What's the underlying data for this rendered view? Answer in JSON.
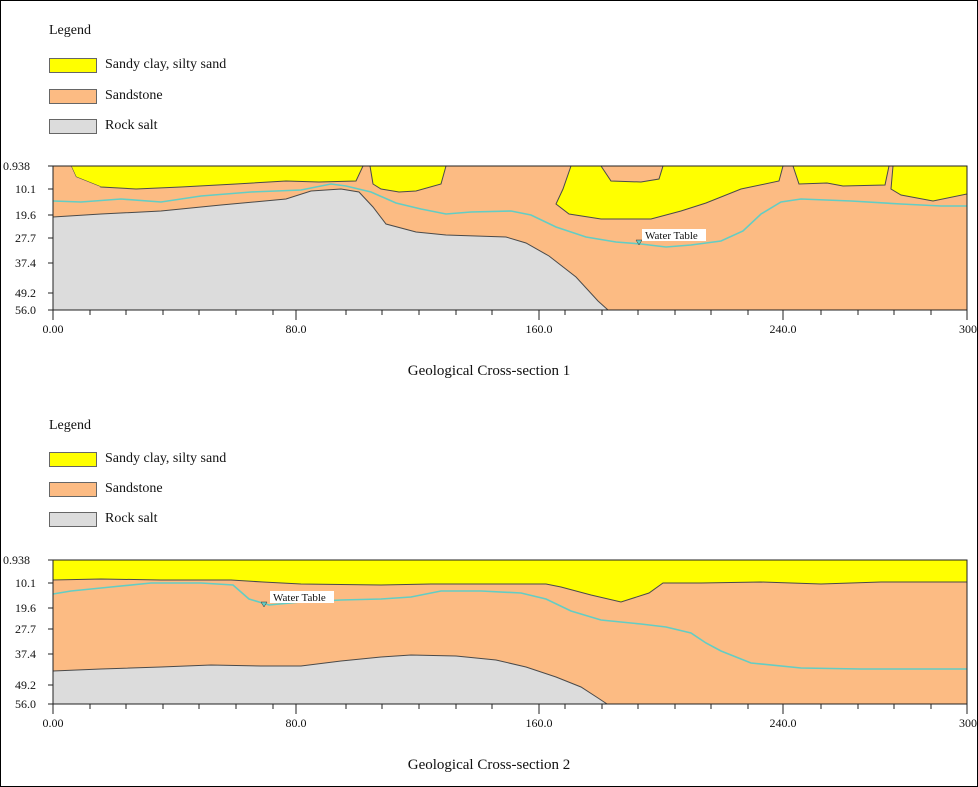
{
  "colors": {
    "sandy_clay": "#ffff00",
    "sandstone": "#fcbb83",
    "rock_salt": "#dcdcdc",
    "water_table": "#63cdc4",
    "boundary": "#4a4a4a"
  },
  "sections": [
    {
      "legend_title": "Legend",
      "legend": [
        {
          "label": "Sandy clay, silty sand",
          "layer": "sandy_clay"
        },
        {
          "label": "Sandstone",
          "layer": "sandstone"
        },
        {
          "label": "Rock salt",
          "layer": "rock_salt"
        }
      ],
      "y_ticks": [
        "0.938",
        "10.1",
        "19.6",
        "27.7",
        "37.4",
        "49.2",
        "56.0"
      ],
      "x_ticks": [
        "0.00",
        "80.0",
        "160.0",
        "240.0",
        "300.0"
      ],
      "water_table_label": "Water Table",
      "caption": "Geological Cross-section 1"
    },
    {
      "legend_title": "Legend",
      "legend": [
        {
          "label": "Sandy clay, silty sand",
          "layer": "sandy_clay"
        },
        {
          "label": "Sandstone",
          "layer": "sandstone"
        },
        {
          "label": "Rock salt",
          "layer": "rock_salt"
        }
      ],
      "y_ticks": [
        "0.938",
        "10.1",
        "19.6",
        "27.7",
        "37.4",
        "49.2",
        "56.0"
      ],
      "x_ticks": [
        "0.00",
        "80.0",
        "160.0",
        "240.0",
        "300.0"
      ],
      "water_table_label": "Water Table",
      "caption": "Geological Cross-section 2"
    }
  ]
}
